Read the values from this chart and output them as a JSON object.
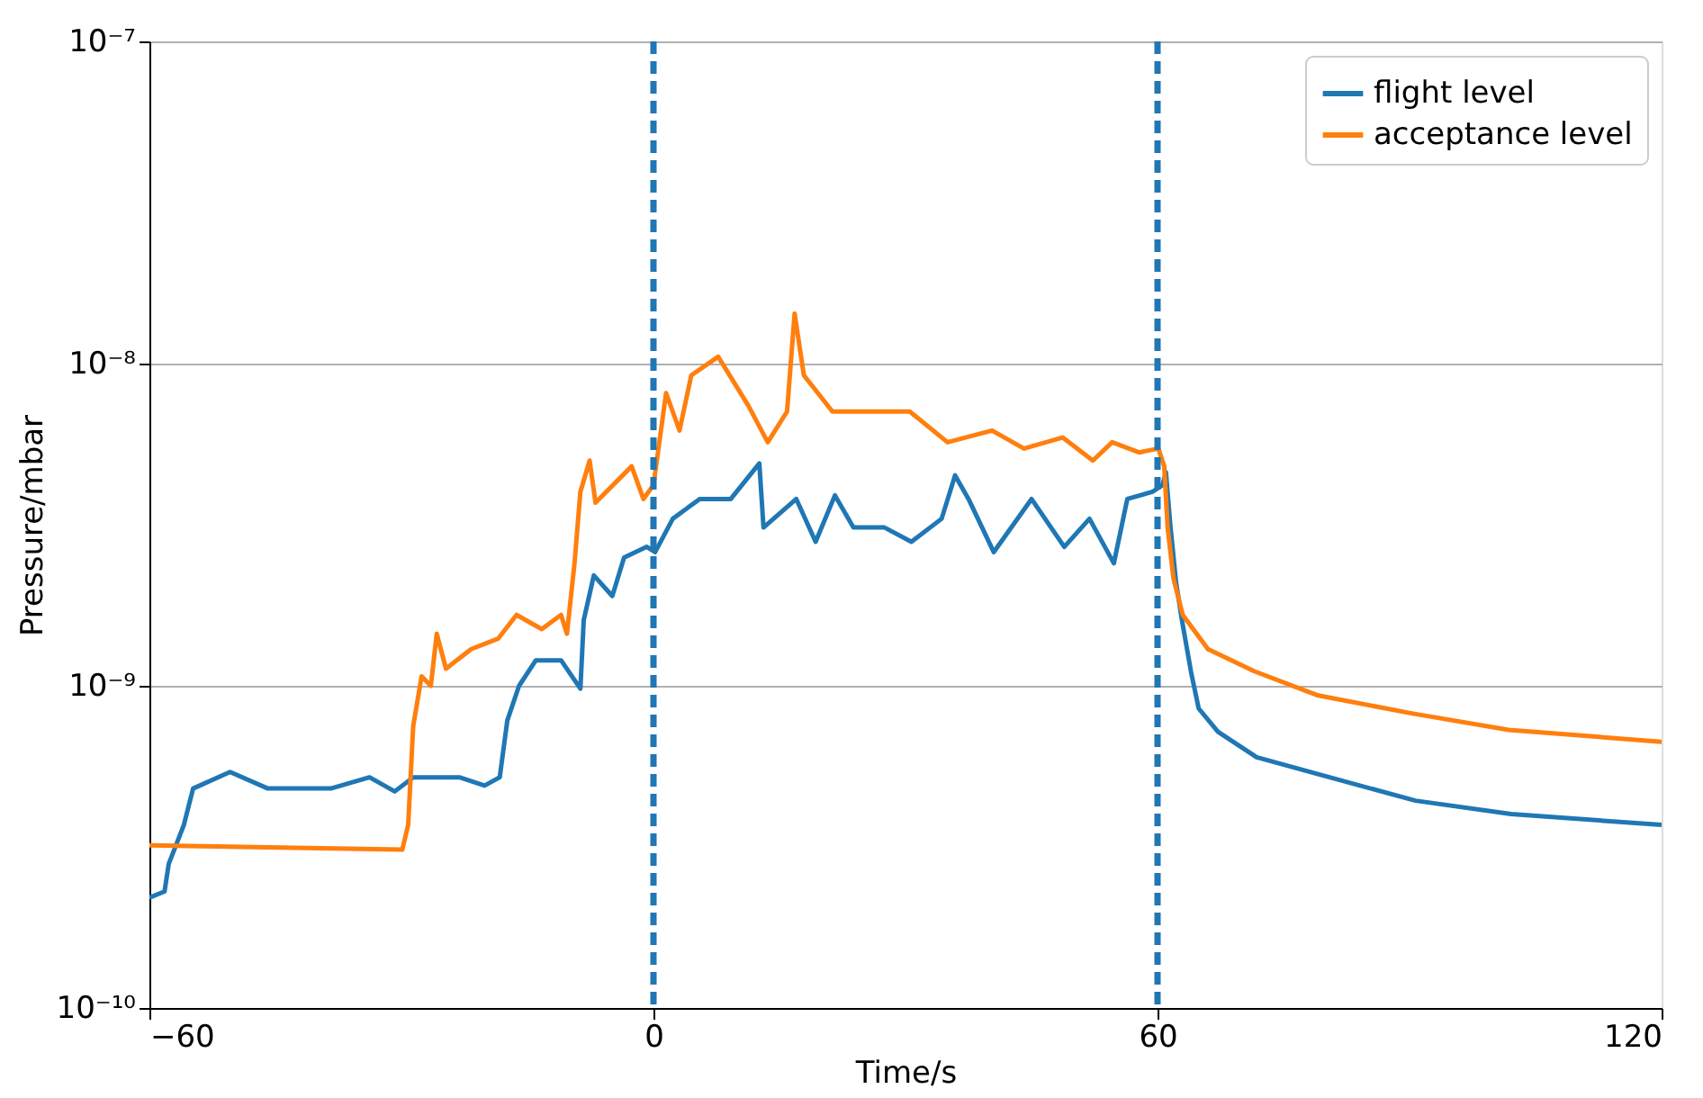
{
  "chart_data": {
    "type": "line",
    "xlabel": "Time/s",
    "ylabel": "Pressure/mbar",
    "xlim": [
      -60,
      120
    ],
    "xticks": [
      -60,
      0,
      60,
      120
    ],
    "ylim": [
      1e-10,
      1e-07
    ],
    "log": true,
    "yticks": [
      {
        "value": 1e-10,
        "label": "10⁻¹⁰"
      },
      {
        "value": 1e-09,
        "label": "10⁻⁹"
      },
      {
        "value": 1e-08,
        "label": "10⁻⁸"
      },
      {
        "value": 1e-07,
        "label": "10⁻⁷"
      }
    ],
    "grid": "y",
    "legend": "top right",
    "marker": "none",
    "line_style": "solid",
    "series": [
      {
        "name": "flight level",
        "color": "#1f77b4",
        "x": [
          -60,
          -58.2,
          -57.7,
          -55.9,
          -54.8,
          -50.4,
          -45.9,
          -38.4,
          -33.8,
          -30.8,
          -28.6,
          -23.1,
          -20.1,
          -18.3,
          -17.4,
          -16.0,
          -14.0,
          -11.0,
          -8.7,
          -8.3,
          -7.1,
          -4.9,
          -3.5,
          -0.8,
          0.2,
          2.3,
          5.5,
          9.2,
          12.6,
          13.1,
          17.0,
          19.3,
          21.6,
          23.8,
          27.5,
          30.7,
          34.3,
          35.9,
          37.5,
          40.5,
          45.0,
          48.9,
          51.9,
          54.8,
          56.4,
          59.4,
          60.6,
          61.0,
          61.5,
          62.2,
          62.9,
          64.0,
          64.9,
          67.2,
          71.8,
          79.3,
          90.7,
          102.1,
          120
        ],
        "values": [
          2.2e-10,
          2.3e-10,
          2.8e-10,
          3.7e-10,
          4.8e-10,
          5.4e-10,
          4.8e-10,
          4.8e-10,
          5.2e-10,
          4.7e-10,
          5.2e-10,
          5.2e-10,
          4.9e-10,
          5.2e-10,
          7.8e-10,
          1e-09,
          1.2e-09,
          1.2e-09,
          9.8e-10,
          1.6e-09,
          2.2e-09,
          1.9e-09,
          2.5e-09,
          2.7e-09,
          2.6e-09,
          3.3e-09,
          3.8e-09,
          3.8e-09,
          4.9e-09,
          3.1e-09,
          3.8e-09,
          2.8e-09,
          3.9e-09,
          3.1e-09,
          3.1e-09,
          2.8e-09,
          3.3e-09,
          4.5e-09,
          3.8e-09,
          2.6e-09,
          3.8e-09,
          2.7e-09,
          3.3e-09,
          2.4e-09,
          3.8e-09,
          4e-09,
          4.2e-09,
          4.6e-09,
          3.2e-09,
          2.1e-09,
          1.6e-09,
          1.1e-09,
          8.5e-10,
          7.2e-10,
          6e-10,
          5.3e-10,
          4.4e-10,
          4e-10,
          3.7e-10
        ]
      },
      {
        "name": "acceptance level",
        "color": "#ff7f0e",
        "x": [
          -60,
          -29.9,
          -29.2,
          -28.6,
          -27.6,
          -26.5,
          -25.8,
          -24.7,
          -21.7,
          -18.5,
          -16.3,
          -13.3,
          -11.0,
          -10.3,
          -9.4,
          -8.7,
          -7.6,
          -6.9,
          -2.6,
          -1.2,
          0.0,
          1.5,
          3.1,
          4.5,
          7.7,
          11.3,
          13.6,
          15.9,
          16.8,
          17.9,
          21.3,
          27.3,
          30.5,
          35.0,
          40.3,
          44.1,
          48.7,
          52.3,
          54.6,
          57.8,
          60.1,
          60.8,
          61.2,
          61.9,
          63.0,
          66.0,
          71.5,
          79.0,
          90.4,
          101.8,
          120
        ],
        "values": [
          3.2e-10,
          3.1e-10,
          3.7e-10,
          7.5e-10,
          1.07e-09,
          1e-09,
          1.45e-09,
          1.13e-09,
          1.3e-09,
          1.4e-09,
          1.66e-09,
          1.5e-09,
          1.66e-09,
          1.45e-09,
          2.4e-09,
          4e-09,
          5e-09,
          3.7e-09,
          4.8e-09,
          3.8e-09,
          4.2e-09,
          8.1e-09,
          6.2e-09,
          9.2e-09,
          1.05e-08,
          7.4e-09,
          5.7e-09,
          7.1e-09,
          1.43e-08,
          9.2e-09,
          7.1e-09,
          7.1e-09,
          7.1e-09,
          5.7e-09,
          6.2e-09,
          5.45e-09,
          5.9e-09,
          5e-09,
          5.7e-09,
          5.3e-09,
          5.45e-09,
          4.8e-09,
          3.1e-09,
          2.15e-09,
          1.66e-09,
          1.3e-09,
          1.11e-09,
          9.35e-10,
          8.2e-10,
          7.3e-10,
          6.7e-10
        ]
      }
    ],
    "ref_lines": [
      {
        "axis": "x",
        "value": 0,
        "color": "#1f77b4",
        "line_style": "dashed"
      },
      {
        "axis": "x",
        "value": 60,
        "color": "#1f77b4",
        "line_style": "dashed"
      }
    ]
  }
}
